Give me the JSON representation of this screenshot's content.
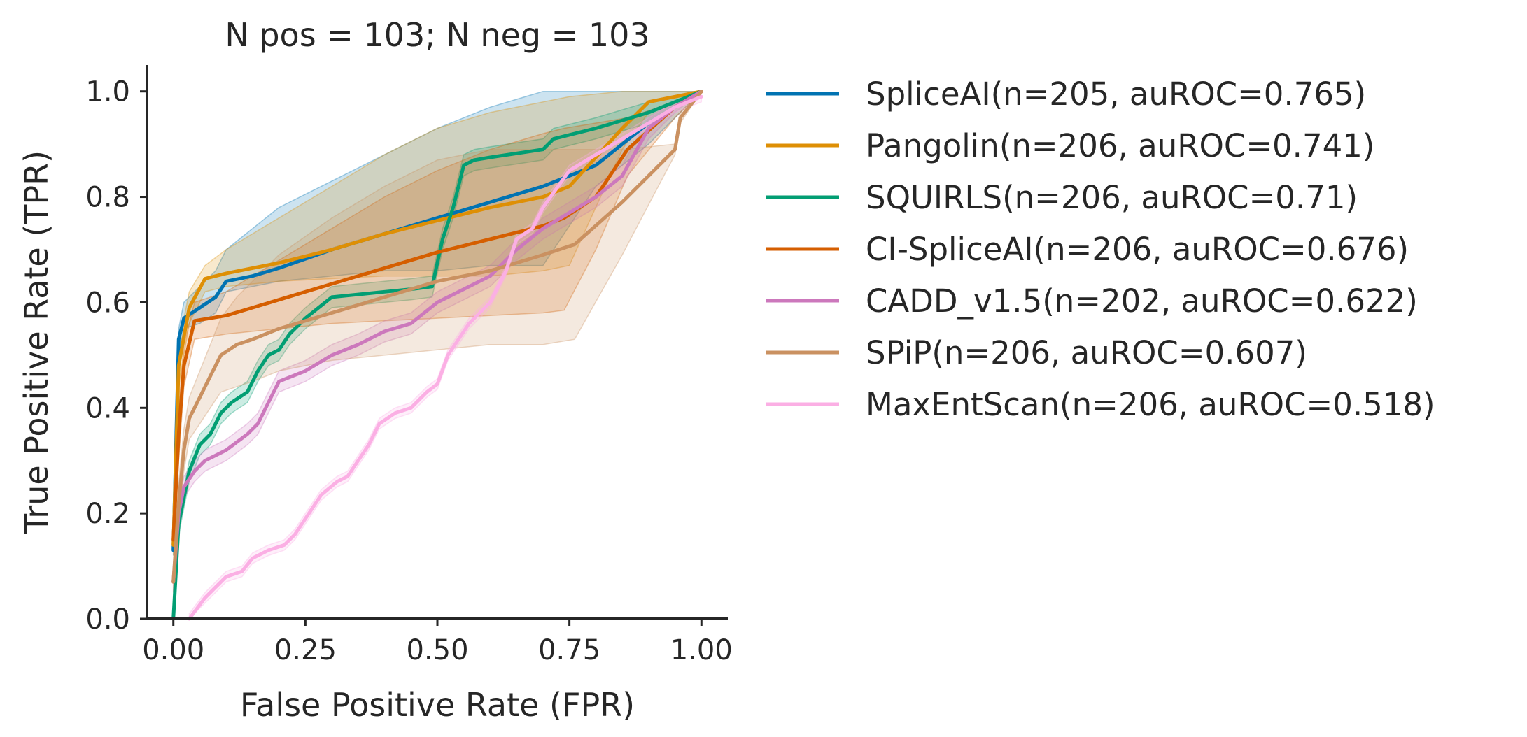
{
  "chart_data": {
    "type": "line",
    "title": "N pos = 103; N neg = 103",
    "xlabel": "False Positive Rate (FPR)",
    "ylabel": "True Positive Rate (TPR)",
    "xlim": [
      -0.05,
      1.05
    ],
    "ylim": [
      0.0,
      1.05
    ],
    "xticks": [
      0.0,
      0.25,
      0.5,
      0.75,
      1.0
    ],
    "xtick_labels": [
      "0.00",
      "0.25",
      "0.50",
      "0.75",
      "1.00"
    ],
    "yticks": [
      0.0,
      0.2,
      0.4,
      0.6,
      0.8,
      1.0
    ],
    "ytick_labels": [
      "0.0",
      "0.2",
      "0.4",
      "0.6",
      "0.8",
      "1.0"
    ],
    "grid": false,
    "legend_position": "outside-right",
    "series": [
      {
        "name": "SpliceAI(n=205, auROC=0.765)",
        "color": "#0173b2",
        "x": [
          0.0,
          0.01,
          0.02,
          0.05,
          0.08,
          0.1,
          0.15,
          0.2,
          0.3,
          0.4,
          0.5,
          0.6,
          0.7,
          0.8,
          0.9,
          1.0
        ],
        "y": [
          0.13,
          0.53,
          0.57,
          0.59,
          0.61,
          0.64,
          0.65,
          0.665,
          0.7,
          0.73,
          0.76,
          0.79,
          0.82,
          0.86,
          0.94,
          1.0
        ],
        "band_upper": [
          0.15,
          0.55,
          0.6,
          0.63,
          0.66,
          0.7,
          0.74,
          0.78,
          0.83,
          0.88,
          0.93,
          0.97,
          1.0,
          1.0,
          1.0,
          1.0
        ],
        "band_lower": [
          0.12,
          0.5,
          0.55,
          0.56,
          0.58,
          0.62,
          0.63,
          0.64,
          0.65,
          0.66,
          0.66,
          0.67,
          0.67,
          0.82,
          0.9,
          1.0
        ]
      },
      {
        "name": "Pangolin(n=206, auROC=0.741)",
        "color": "#de8f05",
        "x": [
          0.0,
          0.01,
          0.03,
          0.06,
          0.1,
          0.2,
          0.3,
          0.4,
          0.5,
          0.6,
          0.7,
          0.75,
          0.85,
          0.9,
          1.0
        ],
        "y": [
          0.14,
          0.48,
          0.59,
          0.645,
          0.655,
          0.675,
          0.7,
          0.73,
          0.755,
          0.78,
          0.8,
          0.82,
          0.93,
          0.98,
          1.0
        ],
        "band_upper": [
          0.16,
          0.52,
          0.62,
          0.67,
          0.7,
          0.76,
          0.82,
          0.88,
          0.93,
          0.96,
          0.98,
          0.99,
          1.0,
          1.0,
          1.0
        ],
        "band_lower": [
          0.12,
          0.44,
          0.56,
          0.62,
          0.63,
          0.64,
          0.645,
          0.65,
          0.65,
          0.65,
          0.66,
          0.67,
          0.89,
          0.96,
          1.0
        ]
      },
      {
        "name": "SQUIRLS(n=206, auROC=0.71)",
        "color": "#029e73",
        "x": [
          0.0,
          0.01,
          0.03,
          0.05,
          0.07,
          0.09,
          0.11,
          0.14,
          0.16,
          0.18,
          0.2,
          0.22,
          0.25,
          0.3,
          0.35,
          0.4,
          0.45,
          0.49,
          0.51,
          0.53,
          0.55,
          0.57,
          0.6,
          0.7,
          0.72,
          0.8,
          0.9,
          0.95,
          1.0
        ],
        "y": [
          0.0,
          0.18,
          0.28,
          0.33,
          0.35,
          0.39,
          0.41,
          0.43,
          0.47,
          0.5,
          0.51,
          0.54,
          0.57,
          0.61,
          0.615,
          0.62,
          0.625,
          0.63,
          0.72,
          0.78,
          0.86,
          0.87,
          0.875,
          0.89,
          0.91,
          0.93,
          0.96,
          0.98,
          1.0
        ],
        "band_upper": [
          0.01,
          0.2,
          0.3,
          0.35,
          0.37,
          0.41,
          0.43,
          0.45,
          0.49,
          0.52,
          0.53,
          0.56,
          0.59,
          0.63,
          0.635,
          0.64,
          0.645,
          0.65,
          0.74,
          0.8,
          0.88,
          0.89,
          0.895,
          0.91,
          0.93,
          0.95,
          0.98,
          0.99,
          1.0
        ],
        "band_lower": [
          0.0,
          0.16,
          0.26,
          0.31,
          0.33,
          0.37,
          0.39,
          0.41,
          0.45,
          0.48,
          0.49,
          0.52,
          0.55,
          0.59,
          0.595,
          0.6,
          0.605,
          0.61,
          0.7,
          0.76,
          0.84,
          0.85,
          0.855,
          0.87,
          0.89,
          0.91,
          0.94,
          0.97,
          1.0
        ]
      },
      {
        "name": "CI-SpliceAI(n=206, auROC=0.676)",
        "color": "#d55e00",
        "x": [
          0.0,
          0.01,
          0.02,
          0.04,
          0.1,
          0.2,
          0.3,
          0.4,
          0.5,
          0.6,
          0.7,
          0.74,
          0.8,
          0.86,
          0.95,
          1.0
        ],
        "y": [
          0.15,
          0.35,
          0.48,
          0.565,
          0.575,
          0.605,
          0.635,
          0.665,
          0.695,
          0.72,
          0.745,
          0.76,
          0.8,
          0.89,
          0.97,
          1.0
        ],
        "band_upper": [
          0.17,
          0.4,
          0.52,
          0.6,
          0.62,
          0.68,
          0.74,
          0.8,
          0.85,
          0.89,
          0.92,
          0.93,
          0.94,
          0.95,
          0.98,
          1.0
        ],
        "band_lower": [
          0.13,
          0.3,
          0.44,
          0.53,
          0.54,
          0.55,
          0.56,
          0.565,
          0.57,
          0.575,
          0.58,
          0.585,
          0.7,
          0.84,
          0.95,
          1.0
        ]
      },
      {
        "name": "CADD_v1.5(n=202, auROC=0.622)",
        "color": "#cc78bc",
        "x": [
          0.0,
          0.01,
          0.02,
          0.04,
          0.06,
          0.08,
          0.1,
          0.12,
          0.14,
          0.16,
          0.18,
          0.2,
          0.25,
          0.3,
          0.35,
          0.4,
          0.45,
          0.5,
          0.55,
          0.6,
          0.65,
          0.7,
          0.75,
          0.8,
          0.85,
          0.9,
          0.95,
          1.0
        ],
        "y": [
          0.07,
          0.2,
          0.25,
          0.28,
          0.3,
          0.31,
          0.32,
          0.335,
          0.35,
          0.37,
          0.41,
          0.45,
          0.47,
          0.5,
          0.52,
          0.545,
          0.56,
          0.6,
          0.625,
          0.65,
          0.7,
          0.74,
          0.77,
          0.8,
          0.84,
          0.93,
          0.97,
          1.0
        ],
        "band_upper": [
          0.09,
          0.22,
          0.27,
          0.3,
          0.32,
          0.33,
          0.34,
          0.355,
          0.37,
          0.39,
          0.43,
          0.47,
          0.49,
          0.52,
          0.54,
          0.565,
          0.58,
          0.62,
          0.645,
          0.67,
          0.72,
          0.76,
          0.79,
          0.82,
          0.86,
          0.95,
          0.98,
          1.0
        ],
        "band_lower": [
          0.05,
          0.18,
          0.23,
          0.26,
          0.28,
          0.29,
          0.3,
          0.315,
          0.33,
          0.35,
          0.39,
          0.43,
          0.45,
          0.48,
          0.5,
          0.525,
          0.54,
          0.58,
          0.605,
          0.63,
          0.68,
          0.72,
          0.75,
          0.78,
          0.82,
          0.91,
          0.96,
          1.0
        ]
      },
      {
        "name": "SPiP(n=206, auROC=0.607)",
        "color": "#ca9161",
        "x": [
          0.0,
          0.01,
          0.02,
          0.03,
          0.05,
          0.07,
          0.09,
          0.12,
          0.15,
          0.2,
          0.3,
          0.4,
          0.5,
          0.6,
          0.7,
          0.76,
          0.85,
          0.95,
          0.96,
          1.0
        ],
        "y": [
          0.07,
          0.22,
          0.32,
          0.38,
          0.42,
          0.46,
          0.5,
          0.52,
          0.53,
          0.55,
          0.58,
          0.61,
          0.64,
          0.66,
          0.69,
          0.71,
          0.79,
          0.89,
          0.95,
          1.0
        ],
        "band_upper": [
          0.09,
          0.26,
          0.36,
          0.42,
          0.47,
          0.52,
          0.57,
          0.61,
          0.64,
          0.69,
          0.76,
          0.82,
          0.87,
          0.89,
          0.89,
          0.89,
          0.89,
          0.9,
          0.96,
          1.0
        ],
        "band_lower": [
          0.05,
          0.18,
          0.28,
          0.34,
          0.37,
          0.4,
          0.43,
          0.44,
          0.45,
          0.47,
          0.49,
          0.5,
          0.51,
          0.52,
          0.52,
          0.53,
          0.69,
          0.88,
          0.94,
          1.0
        ]
      },
      {
        "name": "MaxEntScan(n=206, auROC=0.518)",
        "color": "#fbafe4",
        "x": [
          0.03,
          0.06,
          0.08,
          0.1,
          0.13,
          0.15,
          0.18,
          0.21,
          0.23,
          0.25,
          0.28,
          0.31,
          0.33,
          0.35,
          0.37,
          0.39,
          0.42,
          0.45,
          0.48,
          0.5,
          0.52,
          0.54,
          0.56,
          0.58,
          0.6,
          0.63,
          0.65,
          0.68,
          0.7,
          0.75,
          0.8,
          0.85,
          0.9,
          0.95,
          1.0
        ],
        "y": [
          0.0,
          0.04,
          0.06,
          0.08,
          0.09,
          0.115,
          0.13,
          0.14,
          0.16,
          0.19,
          0.235,
          0.26,
          0.27,
          0.3,
          0.33,
          0.37,
          0.39,
          0.4,
          0.43,
          0.445,
          0.5,
          0.53,
          0.56,
          0.58,
          0.6,
          0.66,
          0.72,
          0.74,
          0.78,
          0.85,
          0.88,
          0.91,
          0.94,
          0.97,
          0.99
        ],
        "band_upper": [
          0.01,
          0.05,
          0.07,
          0.09,
          0.1,
          0.125,
          0.14,
          0.15,
          0.17,
          0.2,
          0.245,
          0.27,
          0.28,
          0.31,
          0.34,
          0.38,
          0.4,
          0.41,
          0.44,
          0.455,
          0.51,
          0.54,
          0.57,
          0.59,
          0.61,
          0.67,
          0.73,
          0.75,
          0.79,
          0.86,
          0.89,
          0.92,
          0.95,
          0.98,
          1.0
        ],
        "band_lower": [
          0.0,
          0.03,
          0.05,
          0.07,
          0.08,
          0.105,
          0.12,
          0.13,
          0.15,
          0.18,
          0.225,
          0.25,
          0.26,
          0.29,
          0.32,
          0.36,
          0.38,
          0.39,
          0.42,
          0.435,
          0.49,
          0.52,
          0.55,
          0.57,
          0.59,
          0.65,
          0.71,
          0.73,
          0.77,
          0.84,
          0.87,
          0.9,
          0.93,
          0.96,
          0.98
        ]
      }
    ]
  }
}
